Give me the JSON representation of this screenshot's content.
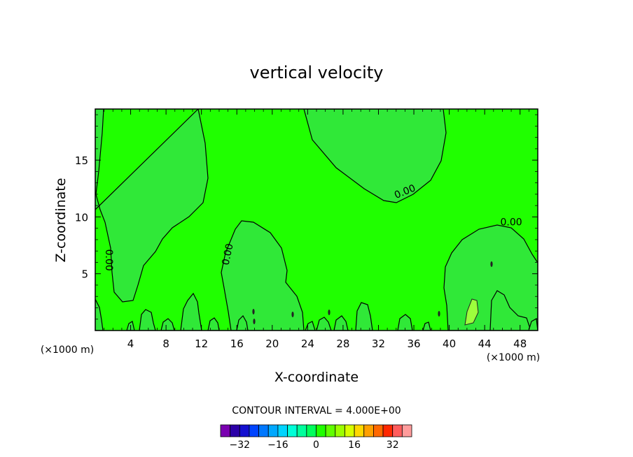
{
  "chart_data": {
    "type": "contour",
    "title": "vertical velocity",
    "xlabel": "X-coordinate",
    "ylabel": "Z-coordinate",
    "x_unit": "(×1000 m)",
    "xlim": [
      0,
      50
    ],
    "ylim": [
      0,
      19.5
    ],
    "x_ticks": [
      4,
      8,
      12,
      16,
      20,
      24,
      28,
      32,
      36,
      40,
      44,
      48
    ],
    "y_ticks": [
      5,
      10,
      15
    ],
    "contour_interval_text": "CONTOUR INTERVAL = 4.000E+00",
    "contour_labels": [
      {
        "text": "0.00",
        "x": 35,
        "y": 12.2
      },
      {
        "text": "0.00",
        "x": 47,
        "y": 9.5
      },
      {
        "text": "0.00",
        "x": 15,
        "y": 6.7
      },
      {
        "text": "0.00",
        "x": 1.5,
        "y": 6.2
      }
    ],
    "colorbar": {
      "levels": [
        -36,
        -32,
        -28,
        -24,
        -20,
        -16,
        -12,
        -8,
        -4,
        0,
        4,
        8,
        12,
        16,
        20,
        24,
        28,
        32,
        36
      ],
      "tick_labels": [
        "-32",
        "-16",
        "0",
        "16",
        "32"
      ],
      "tick_values": [
        -32,
        -16,
        0,
        16,
        32
      ],
      "colors": [
        "#7a00b0",
        "#2c00a8",
        "#1410d0",
        "#0044ff",
        "#0078ff",
        "#00a8ff",
        "#00d4ff",
        "#00ffd8",
        "#00ff9c",
        "#00ff5c",
        "#20ff00",
        "#60ff00",
        "#9cff00",
        "#d8ff00",
        "#ffd800",
        "#ffa000",
        "#ff6800",
        "#ff2800",
        "#ff5c5c",
        "#ff9c9c"
      ]
    },
    "background_level_color": "#20ff00",
    "region_color": "#30e838"
  }
}
